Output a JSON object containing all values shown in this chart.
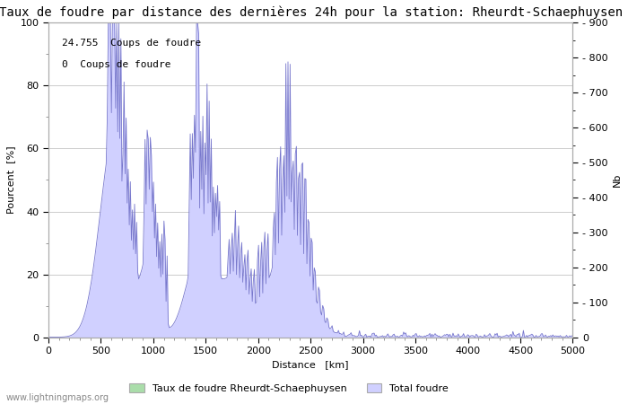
{
  "title": "Taux de foudre par distance des dernières 24h pour la station: Rheurdt-Schaephuysen",
  "xlabel": "Distance   [km]",
  "ylabel_left": "Pourcent  [%]",
  "ylabel_right": "Nb",
  "annotation_line1": "24.755  Coups de foudre",
  "annotation_line2": "0  Coups de foudre",
  "xlim": [
    0,
    5000
  ],
  "ylim_left": [
    0,
    100
  ],
  "ylim_right": [
    0,
    900
  ],
  "xticks": [
    0,
    500,
    1000,
    1500,
    2000,
    2500,
    3000,
    3500,
    4000,
    4500,
    5000
  ],
  "yticks_left": [
    0,
    20,
    40,
    60,
    80,
    100
  ],
  "yticks_right": [
    0,
    100,
    200,
    300,
    400,
    500,
    600,
    700,
    800,
    900
  ],
  "legend_label_green": "Taux de foudre Rheurdt-Schaephuysen",
  "legend_label_blue": "Total foudre",
  "fill_color_blue": "#d0d0ff",
  "fill_color_green": "#aaddaa",
  "line_color": "#7777cc",
  "background_color": "#ffffff",
  "grid_color": "#cccccc",
  "watermark": "www.lightningmaps.org",
  "title_fontsize": 10,
  "axis_fontsize": 8,
  "tick_fontsize": 8
}
